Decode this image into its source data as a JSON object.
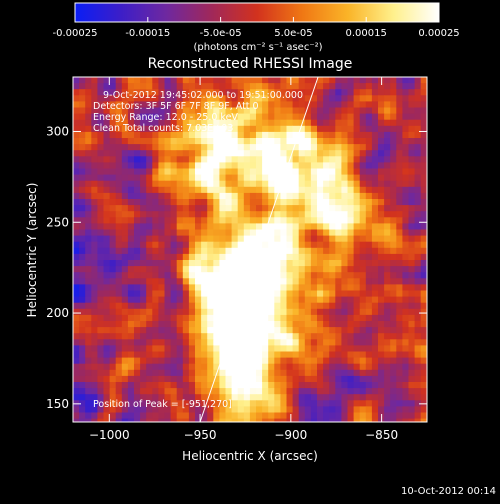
{
  "chart_data": {
    "type": "heatmap",
    "title": "Reconstructed RHESSI Image",
    "xlabel": "Heliocentric X (arcsec)",
    "ylabel": "Heliocentric Y (arcsec)",
    "xlim": [
      -1020,
      -825
    ],
    "ylim": [
      140,
      330
    ],
    "x_ticks": [
      -1000,
      -950,
      -900,
      -850
    ],
    "x_tick_labels": [
      "−1000",
      "−950",
      "−900",
      "−850"
    ],
    "y_ticks": [
      150,
      200,
      250,
      300
    ],
    "y_tick_labels": [
      "150",
      "200",
      "250",
      "300"
    ],
    "colorbar": {
      "range": [
        -0.00025,
        0.00025
      ],
      "tick_values": [
        -0.00025,
        -0.00015,
        -5e-05,
        5e-05,
        0.00015,
        0.00025
      ],
      "tick_labels": [
        "-0.00025",
        "-0.00015",
        "-5.0e-05",
        "5.0e-05",
        "0.00015",
        "0.00025"
      ],
      "units_label": "(photons cm⁻² s⁻¹ asec⁻²)",
      "colors": [
        "#0a1ef5",
        "#3c1ec8",
        "#6e28a0",
        "#a0285a",
        "#d2321e",
        "#f07814",
        "#fab428",
        "#fff08c",
        "#ffffff"
      ]
    },
    "annotations": {
      "time_range": "9-Oct-2012 19:45:02.000 to 19:51:00.000",
      "detectors": "Detectors: 3F 5F 6F 7F 8F 9F, Att 0",
      "energy": "Energy Range: 12.0 - 25.0 keV",
      "clean": "Clean     Total counts: 7.03E+03",
      "peak": "Position of Peak = [-951,270]"
    },
    "peak_position": [
      -951,
      270
    ],
    "limb_line": [
      [
        -950,
        140
      ],
      [
        -885,
        330
      ]
    ],
    "bright_sources": [
      {
        "x": -935,
        "y": 215,
        "strength": 1.0
      },
      {
        "x": -905,
        "y": 285,
        "strength": 0.95
      },
      {
        "x": -925,
        "y": 170,
        "strength": 0.8
      },
      {
        "x": -945,
        "y": 290,
        "strength": 0.7
      },
      {
        "x": -875,
        "y": 255,
        "strength": 0.65
      },
      {
        "x": -910,
        "y": 220,
        "strength": 0.55
      }
    ]
  },
  "footer": {
    "date_stamp": "10-Oct-2012 00:14"
  }
}
